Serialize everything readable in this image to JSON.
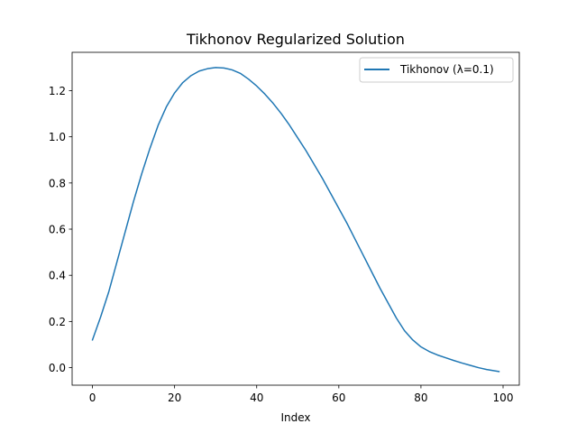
{
  "chart_data": {
    "type": "line",
    "title": "Tikhonov Regularized Solution",
    "xlabel": "Index",
    "ylabel": "",
    "xlim": [
      -4.95,
      103.95
    ],
    "ylim": [
      -0.076,
      1.366
    ],
    "xticks": [
      0,
      20,
      40,
      60,
      80,
      100
    ],
    "yticks": [
      0.0,
      0.2,
      0.4,
      0.6,
      0.8,
      1.0,
      1.2
    ],
    "xtick_labels": [
      "0",
      "20",
      "40",
      "60",
      "80",
      "100"
    ],
    "ytick_labels": [
      "0.0",
      "0.2",
      "0.4",
      "0.6",
      "0.8",
      "1.0",
      "1.2"
    ],
    "grid": false,
    "legend_position": "top-right",
    "series": [
      {
        "name": "Tikhonov (λ=0.1)",
        "color": "#1f77b4",
        "x": [
          0,
          2,
          4,
          6,
          8,
          10,
          12,
          14,
          16,
          18,
          20,
          22,
          24,
          26,
          28,
          30,
          32,
          34,
          36,
          38,
          40,
          42,
          44,
          46,
          48,
          50,
          52,
          54,
          56,
          58,
          60,
          62,
          64,
          66,
          68,
          70,
          72,
          74,
          76,
          78,
          80,
          82,
          84,
          86,
          88,
          90,
          92,
          94,
          96,
          98,
          99
        ],
        "y": [
          0.12,
          0.22,
          0.33,
          0.46,
          0.59,
          0.72,
          0.84,
          0.95,
          1.05,
          1.13,
          1.19,
          1.235,
          1.265,
          1.285,
          1.295,
          1.3,
          1.298,
          1.29,
          1.275,
          1.25,
          1.22,
          1.185,
          1.145,
          1.1,
          1.05,
          0.995,
          0.94,
          0.88,
          0.82,
          0.755,
          0.69,
          0.625,
          0.555,
          0.485,
          0.415,
          0.345,
          0.28,
          0.215,
          0.16,
          0.12,
          0.09,
          0.07,
          0.055,
          0.043,
          0.031,
          0.02,
          0.01,
          0.0,
          -0.008,
          -0.014,
          -0.017
        ]
      }
    ]
  }
}
